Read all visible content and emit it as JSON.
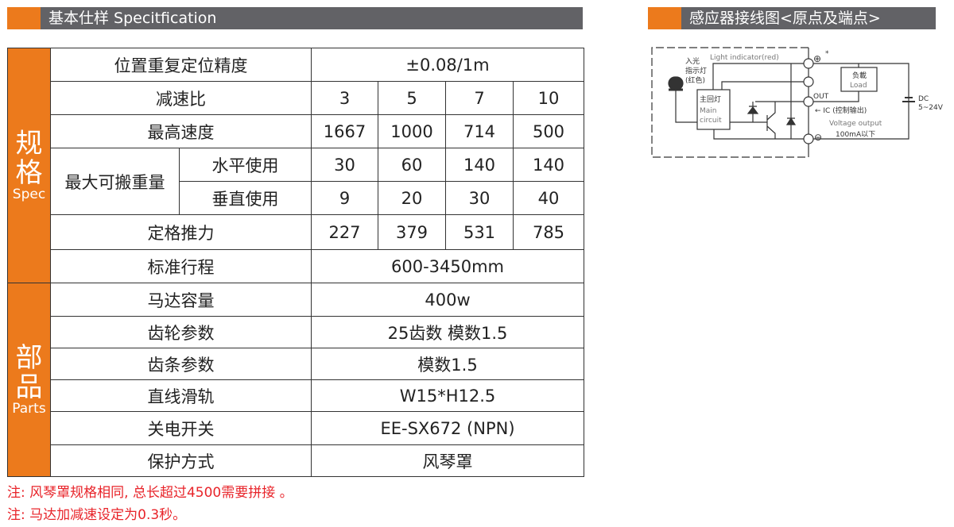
{
  "spec_header": {
    "title": "基本仕样 Specitfication"
  },
  "wiring_header": {
    "title": "感应器接线图<原点及端点>"
  },
  "sections": {
    "spec": {
      "cn": "规格",
      "en": "Spec"
    },
    "parts": {
      "cn": "部品",
      "en": "Parts"
    }
  },
  "rows": [
    {
      "label": "位置重复定位精度",
      "value": "±0.08/1m"
    },
    {
      "label": "减速比",
      "values": [
        "3",
        "5",
        "7",
        "10"
      ]
    },
    {
      "label": "最高速度",
      "values": [
        "1667",
        "1000",
        "714",
        "500"
      ]
    },
    {
      "label": "最大可搬重量",
      "sub": "水平使用",
      "values": [
        "30",
        "60",
        "140",
        "140"
      ]
    },
    {
      "sub": "垂直使用",
      "values": [
        "9",
        "20",
        "30",
        "40"
      ]
    },
    {
      "label": "定格推力",
      "values": [
        "227",
        "379",
        "531",
        "785"
      ]
    },
    {
      "label": "标准行程",
      "value": "600-3450mm"
    },
    {
      "label": "马达容量",
      "value": "400w"
    },
    {
      "label": "齿轮参数",
      "value": "25齿数  模数1.5"
    },
    {
      "label": "齿条参数",
      "value": "模数1.5"
    },
    {
      "label": "直线滑轨",
      "value": "W15*H12.5"
    },
    {
      "label": "关电开关",
      "value": "EE-SX672 (NPN)"
    },
    {
      "label": "保护方式",
      "value": "风琴罩"
    }
  ],
  "notes": [
    "注: 风琴罩规格相同, 总长超过4500需要拼接 。",
    "注: 马达加减速设定为0.3秒。"
  ],
  "diagram": {
    "light_indicator": "Light indicator(red)",
    "plus": "⊕",
    "star": "*",
    "in_light": "入光",
    "indicator": "指示灯",
    "red": "(红色)",
    "main_cn": "主回灯",
    "main1": "Main",
    "main2": "circuit",
    "load_cn": "负載",
    "load": "Load",
    "out": "OUT",
    "ic": "← IC (控制输出)",
    "voltage": "Voltage output",
    "current": "100mA以下",
    "dc": "DC",
    "dc_v": "5~24V",
    "minus": "⊖"
  },
  "colors": {
    "accent": "#ec7a1c",
    "header_gray": "#626266",
    "note_red": "#e8242a"
  }
}
